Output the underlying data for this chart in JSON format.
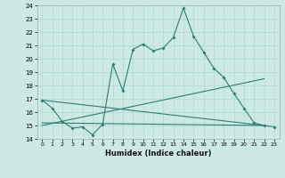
{
  "xlabel": "Humidex (Indice chaleur)",
  "xlim": [
    -0.5,
    23.5
  ],
  "ylim": [
    14,
    24
  ],
  "yticks": [
    14,
    15,
    16,
    17,
    18,
    19,
    20,
    21,
    22,
    23,
    24
  ],
  "xticks": [
    0,
    1,
    2,
    3,
    4,
    5,
    6,
    7,
    8,
    9,
    10,
    11,
    12,
    13,
    14,
    15,
    16,
    17,
    18,
    19,
    20,
    21,
    22,
    23
  ],
  "bg_color": "#cce9e5",
  "line_color": "#2e7d72",
  "grid_color": "#aed4cf",
  "line1_x": [
    0,
    1,
    2,
    3,
    4,
    5,
    6,
    7,
    8,
    9,
    10,
    11,
    12,
    13,
    14,
    15,
    16,
    17,
    18,
    19,
    20,
    21,
    22,
    23
  ],
  "line1_y": [
    16.9,
    16.3,
    15.3,
    14.8,
    14.9,
    14.3,
    15.1,
    19.6,
    17.6,
    20.7,
    21.1,
    20.6,
    20.8,
    21.6,
    23.8,
    21.7,
    20.5,
    19.3,
    18.6,
    17.4,
    16.3,
    15.2,
    15.0,
    14.9
  ],
  "line2_x": [
    0,
    22
  ],
  "line2_y": [
    15.0,
    18.5
  ],
  "line3_x": [
    0,
    22
  ],
  "line3_y": [
    15.2,
    15.0
  ],
  "line4_x": [
    0,
    22
  ],
  "line4_y": [
    16.9,
    15.0
  ]
}
